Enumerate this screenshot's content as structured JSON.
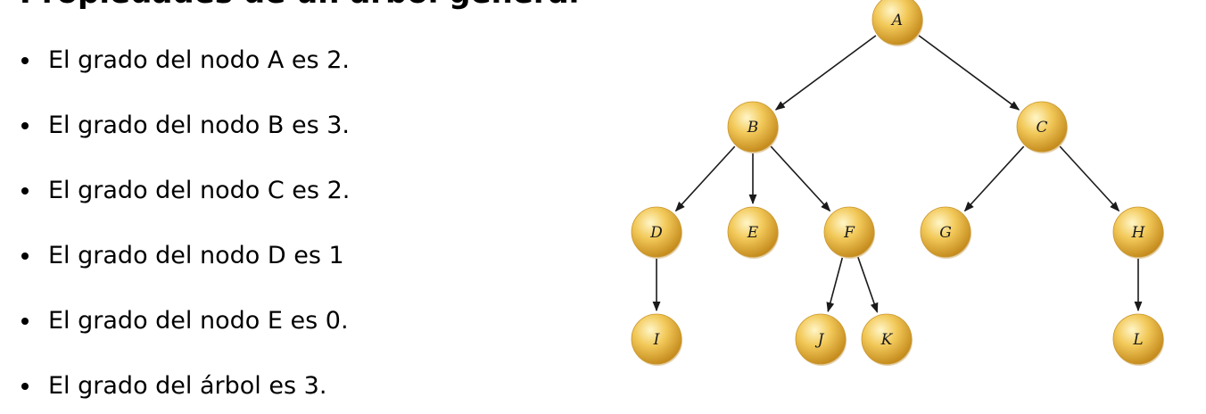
{
  "heading": "Propiedades de un árbol general",
  "bullets": [
    "El grado del nodo A es 2.",
    "El grado del nodo B es 3.",
    "El grado del nodo C es 2.",
    "El grado del nodo D es 1",
    "El grado del nodo E es 0.",
    "El grado del árbol es 3."
  ],
  "tree": {
    "node_color": "#e6b445",
    "edge_color": "#1a1a1a",
    "nodes": [
      "A",
      "B",
      "C",
      "D",
      "E",
      "F",
      "G",
      "H",
      "I",
      "J",
      "K",
      "L"
    ],
    "edges": [
      [
        "A",
        "B"
      ],
      [
        "A",
        "C"
      ],
      [
        "B",
        "D"
      ],
      [
        "B",
        "E"
      ],
      [
        "B",
        "F"
      ],
      [
        "C",
        "G"
      ],
      [
        "C",
        "H"
      ],
      [
        "D",
        "I"
      ],
      [
        "F",
        "J"
      ],
      [
        "F",
        "K"
      ],
      [
        "H",
        "L"
      ]
    ]
  }
}
